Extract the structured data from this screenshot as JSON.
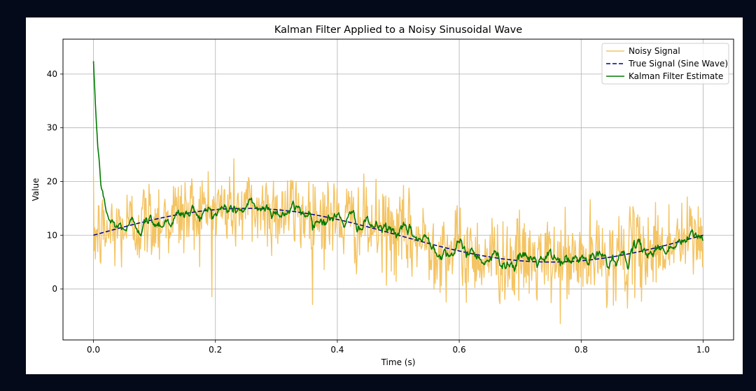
{
  "chart_data": {
    "type": "line",
    "title": "Kalman Filter Applied to a Noisy Sinusoidal Wave",
    "xlabel": "Time (s)",
    "ylabel": "Value",
    "xlim": [
      -0.05,
      1.05
    ],
    "ylim": [
      -9.5,
      46.5
    ],
    "xticks": [
      0.0,
      0.2,
      0.4,
      0.6,
      0.8,
      1.0
    ],
    "xtick_labels": [
      "0.0",
      "0.2",
      "0.4",
      "0.6",
      "0.8",
      "1.0"
    ],
    "yticks": [
      0,
      10,
      20,
      30,
      40
    ],
    "ytick_labels": [
      "0",
      "10",
      "20",
      "30",
      "40"
    ],
    "grid": true,
    "legend_position": "top-right",
    "series": [
      {
        "name": "Noisy Signal",
        "color": "#f4c463",
        "style": "solid",
        "kind": "noisy",
        "base_offset": 10,
        "amplitude": 5,
        "period": 1.0,
        "noise_std": 4,
        "n_points": 1000
      },
      {
        "name": "True Signal (Sine Wave)",
        "color": "#00008b",
        "style": "dashed",
        "kind": "sine",
        "base_offset": 10,
        "amplitude": 5,
        "period": 1.0,
        "n_points": 1000
      },
      {
        "name": "Kalman Filter Estimate",
        "color": "#007a00",
        "style": "solid",
        "kind": "kalman",
        "initial_value": 44,
        "n_points": 1000
      }
    ]
  }
}
